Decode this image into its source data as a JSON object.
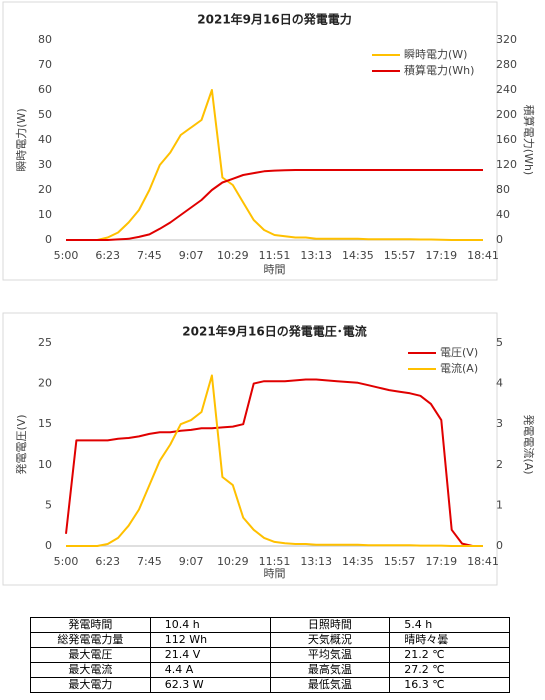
{
  "chart_data": [
    {
      "type": "line",
      "title": "2021年9月16日の発電電力",
      "xlabel": "時間",
      "ylabel": "瞬時電力(W)",
      "y2label": "積算電力(Wh)",
      "categories": [
        "5:00",
        null,
        null,
        null,
        "6:23",
        null,
        null,
        null,
        "7:45",
        null,
        null,
        null,
        "9:07",
        null,
        null,
        null,
        "10:29",
        null,
        null,
        null,
        "11:51",
        null,
        null,
        null,
        "13:13",
        null,
        null,
        null,
        "14:35",
        null,
        null,
        null,
        "15:57",
        null,
        null,
        null,
        "17:19",
        null,
        null,
        null,
        "18:41"
      ],
      "series": [
        {
          "name": "瞬時電力(W)",
          "color": "#ffc000",
          "values": [
            0,
            0,
            0,
            0,
            1,
            3,
            7,
            12,
            20,
            30,
            35,
            42,
            45,
            48,
            60,
            25,
            22,
            15,
            8,
            4,
            2,
            1.5,
            1,
            1,
            0.5,
            0.5,
            0.5,
            0.5,
            0.5,
            0.3,
            0.3,
            0.3,
            0.3,
            0.3,
            0.2,
            0.2,
            0.1,
            0,
            0,
            0,
            0
          ]
        },
        {
          "name": "積算電力(Wh)",
          "color": "#e00000",
          "axis": "y2",
          "values": [
            0,
            0,
            0,
            0,
            0,
            1,
            2,
            5,
            9,
            18,
            28,
            40,
            52,
            64,
            80,
            92,
            98,
            104,
            107,
            110,
            111,
            111.5,
            112,
            112,
            112,
            112,
            112,
            112,
            112,
            112,
            112,
            112,
            112,
            112,
            112,
            112,
            112,
            112,
            112,
            112,
            112
          ]
        }
      ],
      "ylim": [
        0,
        80
      ],
      "yticks": [
        0,
        10,
        20,
        30,
        40,
        50,
        60,
        70,
        80
      ],
      "y2lim": [
        0,
        320
      ],
      "y2ticks": [
        0,
        40,
        80,
        120,
        160,
        200,
        240,
        280,
        320
      ],
      "grid": false,
      "legend": "upper right"
    },
    {
      "type": "line",
      "title": "2021年9月16日の発電電圧･電流",
      "xlabel": "時間",
      "ylabel": "発電電圧(V)",
      "y2label": "発電電流(A)",
      "categories": [
        "5:00",
        null,
        null,
        null,
        "6:23",
        null,
        null,
        null,
        "7:45",
        null,
        null,
        null,
        "9:07",
        null,
        null,
        null,
        "10:29",
        null,
        null,
        null,
        "11:51",
        null,
        null,
        null,
        "13:13",
        null,
        null,
        null,
        "14:35",
        null,
        null,
        null,
        "15:57",
        null,
        null,
        null,
        "17:19",
        null,
        null,
        null,
        "18:41"
      ],
      "series": [
        {
          "name": "電圧(V)",
          "color": "#e00000",
          "values": [
            1.5,
            13,
            13,
            13,
            13,
            13.2,
            13.3,
            13.5,
            13.8,
            14,
            14,
            14.2,
            14.3,
            14.5,
            14.5,
            14.6,
            14.7,
            15,
            20,
            20.3,
            20.3,
            20.3,
            20.4,
            20.5,
            20.5,
            20.4,
            20.3,
            20.2,
            20.1,
            19.8,
            19.5,
            19.2,
            19,
            18.8,
            18.5,
            17.5,
            15.5,
            2,
            0.3,
            0,
            0
          ]
        },
        {
          "name": "電流(A)",
          "color": "#ffc000",
          "axis": "y2",
          "values": [
            0,
            0,
            0,
            0,
            0.05,
            0.2,
            0.5,
            0.9,
            1.5,
            2.1,
            2.5,
            3,
            3.1,
            3.3,
            4.2,
            1.7,
            1.5,
            0.7,
            0.4,
            0.2,
            0.1,
            0.07,
            0.05,
            0.05,
            0.03,
            0.03,
            0.03,
            0.03,
            0.03,
            0.02,
            0.02,
            0.02,
            0.02,
            0.02,
            0.01,
            0.01,
            0.01,
            0,
            0,
            0,
            0
          ]
        }
      ],
      "ylim": [
        0,
        25
      ],
      "yticks": [
        0,
        5,
        10,
        15,
        20,
        25
      ],
      "y2lim": [
        0,
        5
      ],
      "y2ticks": [
        0,
        1,
        2,
        3,
        4,
        5
      ],
      "grid": false,
      "legend": "upper right"
    }
  ],
  "table": {
    "rows": [
      [
        "発電時間",
        "10.4 h",
        "日照時間",
        "5.4 h"
      ],
      [
        "総発電電力量",
        "112 Wh",
        "天気概況",
        "晴時々曇"
      ],
      [
        "最大電圧",
        "21.4 V",
        "平均気温",
        "21.2 ℃"
      ],
      [
        "最大電流",
        "4.4 A",
        "最高気温",
        "27.2 ℃"
      ],
      [
        "最大電力",
        "62.3 W",
        "最低気温",
        "16.3 ℃"
      ]
    ]
  }
}
